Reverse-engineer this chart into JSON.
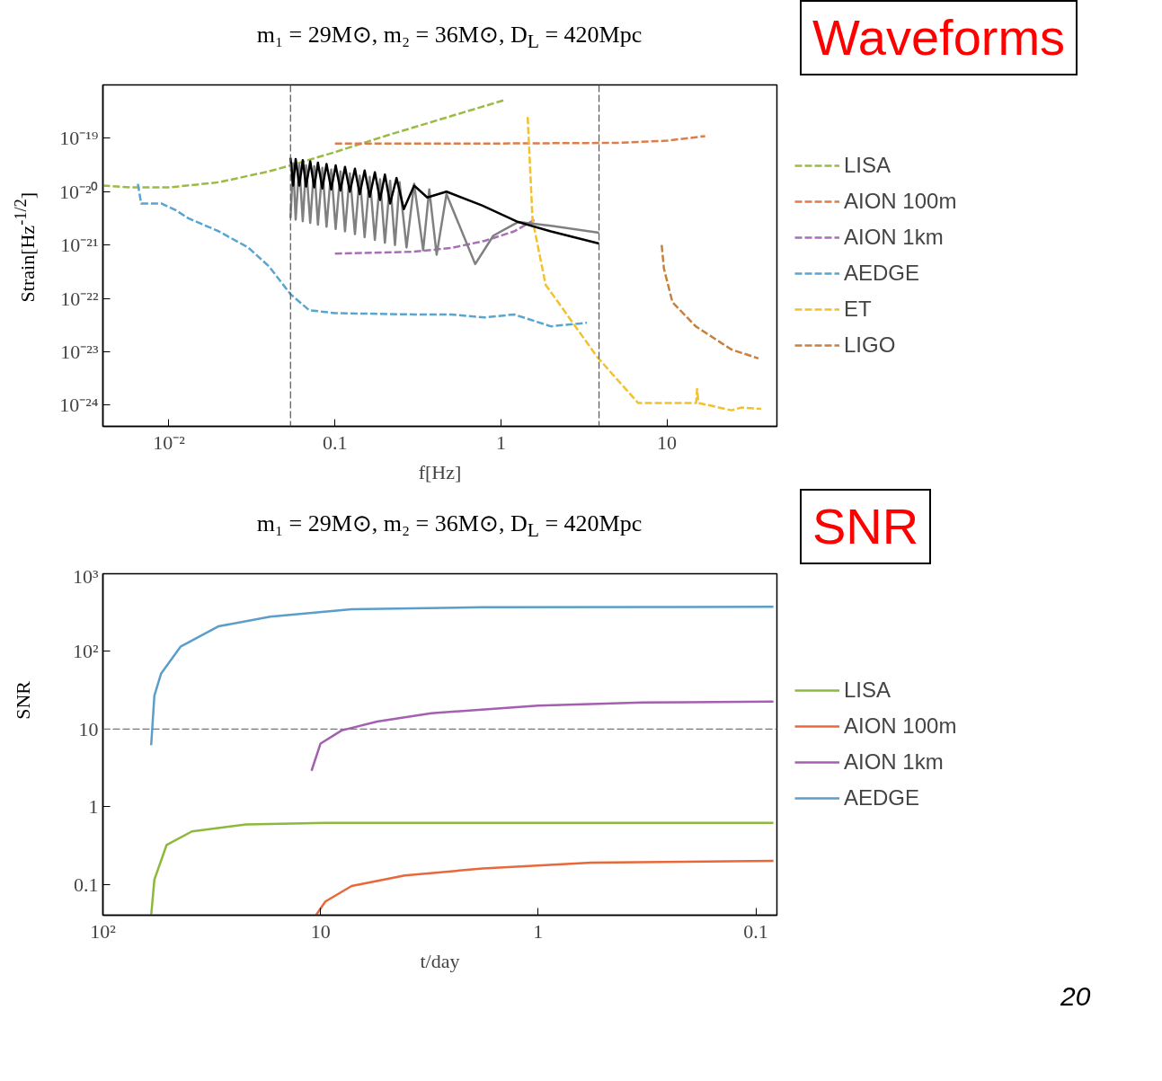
{
  "chart_data": [
    {
      "type": "line",
      "title": "m₁ = 29M⊙, m₂ = 36M⊙, D$_{L}$ = 420Mpc",
      "xlabel": "f[Hz]",
      "ylabel": "Strain[Hz$^{-1/2}$]",
      "log": "xy",
      "grid": false,
      "legend": "right",
      "line_style": "dashed",
      "marker": "none",
      "xlim": [
        0.004,
        46
      ],
      "ylim": [
        4e-25,
        1e-18
      ],
      "xticks": [
        {
          "value": 0.01,
          "label": "10⁻²"
        },
        0.1,
        1,
        10
      ],
      "yticks": [
        {
          "value": 1e-19,
          "label": "10⁻¹⁹"
        },
        {
          "value": 1e-20,
          "label": "10⁻²⁰"
        },
        {
          "value": 1e-21,
          "label": "10⁻²¹"
        },
        {
          "value": 1e-22,
          "label": "10⁻²²"
        },
        {
          "value": 1e-23,
          "label": "10⁻²³"
        },
        {
          "value": 1e-24,
          "label": "10⁻²⁴"
        }
      ],
      "ref_lines": [
        {
          "axis": "x",
          "value": 0.054,
          "color": "#555555",
          "line_style": "dashed"
        },
        {
          "axis": "x",
          "value": 3.9,
          "color": "#555555",
          "line_style": "dashed"
        }
      ],
      "annotations": [
        "Waveforms"
      ],
      "series": [
        {
          "name": "LISA",
          "color": "#9bbb45",
          "x": [
            0.004,
            0.006,
            0.01,
            0.02,
            0.04,
            0.054,
            0.1,
            0.2,
            0.5,
            1.05
          ],
          "values": [
            1.3e-20,
            1.2e-20,
            1.2e-20,
            1.5e-20,
            2.4e-20,
            3.1e-20,
            5.5e-20,
            1.1e-19,
            2.6e-19,
            5.2e-19
          ]
        },
        {
          "name": "AION 100m",
          "color": "#e07b4a",
          "x": [
            0.1,
            1,
            5,
            10,
            17
          ],
          "values": [
            8e-20,
            8e-20,
            8.2e-20,
            9e-20,
            1.1e-19
          ]
        },
        {
          "name": "AION 1km",
          "color": "#a86fb7",
          "x": [
            0.1,
            0.3,
            0.5,
            0.8,
            1.2,
            1.6
          ],
          "values": [
            6.9e-22,
            7.5e-22,
            8.8e-22,
            1.2e-21,
            1.8e-21,
            3e-21
          ]
        },
        {
          "name": "AEDGE",
          "color": "#5aa5d0",
          "x": [
            0.0065,
            0.0068,
            0.009,
            0.011,
            0.013,
            0.02,
            0.03,
            0.04,
            0.054,
            0.07,
            0.1,
            0.3,
            0.5,
            0.8,
            1.2,
            2,
            3.3
          ],
          "values": [
            1.4e-20,
            6e-21,
            6e-21,
            4.5e-21,
            3.2e-21,
            1.8e-21,
            9e-22,
            4e-22,
            1.2e-22,
            6e-23,
            5.3e-23,
            5e-23,
            5e-23,
            4.4e-23,
            5e-23,
            3e-23,
            3.5e-23
          ]
        },
        {
          "name": "ET",
          "color": "#f2c12e",
          "x": [
            1.45,
            1.55,
            1.86,
            3.8,
            6.7,
            15,
            15.2,
            15.5,
            24.5,
            28,
            37
          ],
          "values": [
            2.5e-19,
            3e-21,
            1.8e-22,
            8e-24,
            1.1e-24,
            1.1e-24,
            2e-24,
            1.1e-24,
            8e-25,
            9e-25,
            8.5e-25
          ]
        },
        {
          "name": "LIGO",
          "color": "#c9803f",
          "x": [
            9.3,
            9.6,
            10.8,
            14.9,
            24.5,
            35.6
          ],
          "values": [
            1e-21,
            3.6e-22,
            8.5e-23,
            3e-23,
            1.1e-23,
            7.5e-24
          ]
        },
        {
          "color": "#808080",
          "line_style": "solid",
          "x": [
            0.054,
            0.056,
            0.058,
            0.061,
            0.064,
            0.067,
            0.071,
            0.075,
            0.079,
            0.084,
            0.089,
            0.095,
            0.101,
            0.108,
            0.115,
            0.123,
            0.132,
            0.141,
            0.151,
            0.162,
            0.174,
            0.187,
            0.2,
            0.215,
            0.23,
            0.245,
            0.27,
            0.3,
            0.34,
            0.37,
            0.41,
            0.47,
            0.7,
            0.9,
            1.27,
            2,
            3.9
          ],
          "values": [
            3.2e-21,
            3.4e-20,
            3e-21,
            3.3e-20,
            2.8e-21,
            3.1e-20,
            2.6e-21,
            3e-20,
            2.4e-21,
            2.8e-20,
            2.2e-21,
            2.6e-20,
            2e-21,
            2.4e-20,
            1.8e-21,
            2.2e-20,
            1.6e-21,
            2e-20,
            1.4e-21,
            1.9e-20,
            1.25e-21,
            1.7e-20,
            1.1e-21,
            1.6e-20,
            1e-21,
            1.5e-20,
            9e-22,
            1.4e-20,
            8e-22,
            1.1e-20,
            6.6e-22,
            9e-21,
            4.4e-22,
            1.5e-21,
            2.7e-21,
            2.3e-21,
            1.7e-21
          ]
        },
        {
          "color": "#000000",
          "line_style": "solid",
          "x": [
            0.054,
            0.056,
            0.058,
            0.061,
            0.064,
            0.067,
            0.071,
            0.075,
            0.079,
            0.084,
            0.089,
            0.095,
            0.101,
            0.108,
            0.115,
            0.123,
            0.132,
            0.141,
            0.151,
            0.162,
            0.174,
            0.187,
            0.2,
            0.215,
            0.235,
            0.26,
            0.3,
            0.36,
            0.47,
            0.77,
            1.27,
            2,
            3.9
          ],
          "values": [
            4.3e-20,
            1.3e-20,
            4.1e-20,
            1.3e-20,
            3.9e-20,
            1.25e-20,
            3.7e-20,
            1.2e-20,
            3.5e-20,
            1.15e-20,
            3.3e-20,
            1.1e-20,
            3.1e-20,
            1.05e-20,
            2.9e-20,
            1e-20,
            2.7e-20,
            9e-21,
            2.5e-20,
            8e-21,
            2.3e-20,
            7e-21,
            2.1e-20,
            6e-21,
            1.8e-20,
            4.7e-21,
            1.3e-20,
            7.8e-21,
            1e-20,
            5.5e-21,
            2.7e-21,
            1.8e-21,
            1.07e-21
          ]
        }
      ]
    },
    {
      "type": "line",
      "title": "m₁ = 29M⊙, m₂ = 36M⊙, D$_{L}$ = 420Mpc",
      "xlabel": "t/day",
      "ylabel": "SNR",
      "log": "xy",
      "grid": false,
      "legend": "right",
      "line_style": "solid",
      "marker": "none",
      "xlim": [
        100,
        0.08
      ],
      "ylim": [
        0.04,
        1000
      ],
      "xticks": [
        {
          "value": 100,
          "label": "10²"
        },
        10,
        1,
        0.1
      ],
      "yticks": [
        {
          "value": 1000,
          "label": "10³"
        },
        {
          "value": 100,
          "label": "10²"
        },
        10,
        1,
        0.1
      ],
      "ref_lines": [
        {
          "axis": "y",
          "value": 10,
          "color": "#777777",
          "line_style": "dashed"
        }
      ],
      "annotations": [
        "SNR",
        "20"
      ],
      "series": [
        {
          "name": "LISA",
          "color": "#8cb83c",
          "x": [
            60,
            58,
            51,
            39,
            22,
            9.5,
            0.083
          ],
          "values": [
            0.04,
            0.115,
            0.32,
            0.48,
            0.59,
            0.62,
            0.62
          ]
        },
        {
          "name": "AION 100m",
          "color": "#e8683a",
          "x": [
            10.5,
            9.5,
            7.2,
            4.1,
            1.8,
            0.57,
            0.083
          ],
          "values": [
            0.04,
            0.06,
            0.095,
            0.13,
            0.16,
            0.19,
            0.2
          ]
        },
        {
          "name": "AION 1km",
          "color": "#a45fb0",
          "x": [
            11,
            10,
            8,
            5.5,
            3.1,
            1.0,
            0.33,
            0.083
          ],
          "values": [
            2.9,
            6.5,
            9.6,
            12.5,
            16,
            20,
            22,
            22.6
          ]
        },
        {
          "name": "AEDGE",
          "color": "#5a9ec9",
          "x": [
            60,
            58,
            54,
            44,
            29.5,
            17,
            7.2,
            1.8,
            0.083
          ],
          "values": [
            6.2,
            27,
            52,
            115,
            210,
            280,
            350,
            370,
            375
          ]
        }
      ]
    }
  ]
}
